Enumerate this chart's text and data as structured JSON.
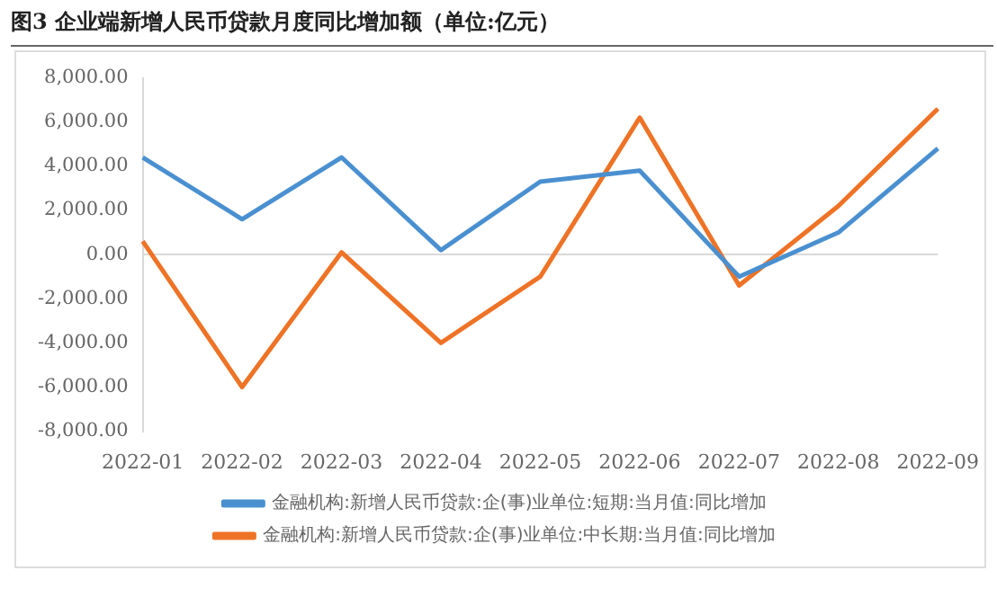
{
  "chart_data": {
    "type": "line",
    "title": "图3  企业端新增人民币贷款月度同比增加额（单位:亿元）",
    "categories": [
      "2022-01",
      "2022-02",
      "2022-03",
      "2022-04",
      "2022-05",
      "2022-06",
      "2022-07",
      "2022-08",
      "2022-09"
    ],
    "series": [
      {
        "name": "金融机构:新增人民币贷款:企(事)业单位:短期:当月值:同比增加",
        "color": "#4a90d0",
        "values": [
          4400,
          1600,
          4400,
          200,
          3300,
          3800,
          -1000,
          1000,
          4800
        ]
      },
      {
        "name": "金融机构:新增人民币贷款:企(事)业单位:中长期:当月值:同比增加",
        "color": "#ee7326",
        "values": [
          600,
          -6000,
          100,
          -4000,
          -1000,
          6200,
          -1400,
          2200,
          6600
        ]
      }
    ],
    "ylim": [
      -8000,
      8000
    ],
    "yticks": [
      {
        "value": -8000,
        "label": "-8,000.00"
      },
      {
        "value": -6000,
        "label": "-6,000.00"
      },
      {
        "value": -4000,
        "label": "-4,000.00"
      },
      {
        "value": -2000,
        "label": "-2,000.00"
      },
      {
        "value": 0,
        "label": "0.00"
      },
      {
        "value": 2000,
        "label": "2,000.00"
      },
      {
        "value": 4000,
        "label": "4,000.00"
      },
      {
        "value": 6000,
        "label": "6,000.00"
      },
      {
        "value": 8000,
        "label": "8,000.00"
      }
    ],
    "ref_lines": [
      {
        "axis": "y",
        "value": 0,
        "color": "#d9d9d9"
      }
    ],
    "grid": false,
    "legend": "bottom",
    "marker": "none",
    "line_style": "solid"
  }
}
